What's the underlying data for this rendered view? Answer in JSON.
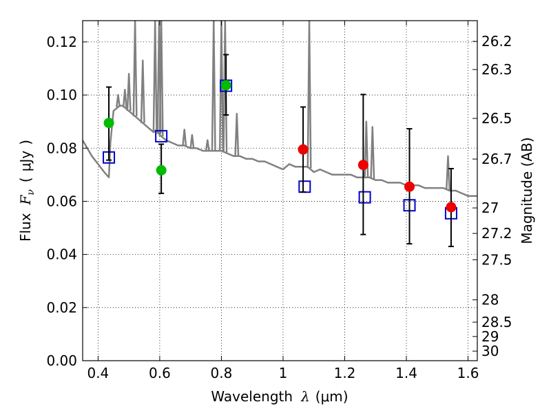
{
  "chart_data": {
    "type": "scatter",
    "title": "",
    "xlabel": {
      "prefix": "Wavelength",
      "symbol": "λ",
      "unit_open": "(",
      "unit": "μm",
      "unit_close": ")"
    },
    "ylabel": {
      "prefix": "Flux",
      "symbol": "F",
      "subscript": "ν",
      "unit_open": "(",
      "unit": "μJy",
      "unit_close": ")"
    },
    "y2label": "Magnitude (AB)",
    "xlim": [
      0.35,
      1.63
    ],
    "ylim": [
      0.0,
      0.128
    ],
    "grid": true,
    "grid_style": "dotted",
    "x_ticks": [
      0.4,
      0.6,
      0.8,
      1.0,
      1.2,
      1.4,
      1.6
    ],
    "x_tick_labels": [
      "0.4",
      "0.6",
      "0.8",
      "1",
      "1.2",
      "1.4",
      "1.6"
    ],
    "y_ticks": [
      0.0,
      0.02,
      0.04,
      0.06,
      0.08,
      0.1,
      0.12
    ],
    "y_tick_labels": [
      "0.00",
      "0.02",
      "0.04",
      "0.06",
      "0.08",
      "0.10",
      "0.12"
    ],
    "y2_ticks": [
      {
        "flux": 0.1202,
        "label": "26.2"
      },
      {
        "flux": 0.1096,
        "label": "26.3"
      },
      {
        "flux": 0.0912,
        "label": "26.5"
      },
      {
        "flux": 0.0759,
        "label": "26.7"
      },
      {
        "flux": 0.0575,
        "label": "27"
      },
      {
        "flux": 0.0479,
        "label": "27.2"
      },
      {
        "flux": 0.038,
        "label": "27.5"
      },
      {
        "flux": 0.0229,
        "label": "28"
      },
      {
        "flux": 0.0145,
        "label": "28.5"
      },
      {
        "flux": 0.0091,
        "label": "29"
      },
      {
        "flux": 0.0036,
        "label": "30"
      }
    ],
    "colors": {
      "sed": "#808080",
      "model": "#0000cc",
      "observed_optical": "#00bb00",
      "observed_nir": "#ee0000",
      "errorbar": "#000000"
    },
    "series": [
      {
        "kind": "line",
        "color": "#808080",
        "x": [
          0.35,
          0.38,
          0.4,
          0.42,
          0.435,
          0.44,
          0.445,
          0.45,
          0.46,
          0.47,
          0.48,
          0.49,
          0.5,
          0.52,
          0.54,
          0.56,
          0.58,
          0.59,
          0.6,
          0.61,
          0.62,
          0.64,
          0.66,
          0.68,
          0.7,
          0.72,
          0.74,
          0.76,
          0.78,
          0.8,
          0.82,
          0.84,
          0.86,
          0.88,
          0.9,
          0.92,
          0.94,
          0.96,
          0.98,
          1.0,
          1.02,
          1.04,
          1.06,
          1.08,
          1.1,
          1.12,
          1.14,
          1.16,
          1.18,
          1.2,
          1.22,
          1.24,
          1.26,
          1.28,
          1.3,
          1.32,
          1.34,
          1.36,
          1.38,
          1.4,
          1.42,
          1.44,
          1.46,
          1.48,
          1.5,
          1.52,
          1.54,
          1.56,
          1.58,
          1.6,
          1.63
        ],
        "y": [
          0.083,
          0.077,
          0.074,
          0.071,
          0.069,
          0.082,
          0.088,
          0.094,
          0.095,
          0.096,
          0.096,
          0.095,
          0.094,
          0.092,
          0.09,
          0.088,
          0.086,
          0.087,
          0.085,
          0.084,
          0.083,
          0.082,
          0.081,
          0.081,
          0.08,
          0.08,
          0.079,
          0.079,
          0.079,
          0.079,
          0.078,
          0.077,
          0.077,
          0.076,
          0.076,
          0.075,
          0.075,
          0.074,
          0.073,
          0.072,
          0.074,
          0.073,
          0.073,
          0.073,
          0.071,
          0.072,
          0.071,
          0.07,
          0.07,
          0.07,
          0.07,
          0.069,
          0.069,
          0.069,
          0.068,
          0.068,
          0.067,
          0.067,
          0.067,
          0.066,
          0.066,
          0.066,
          0.065,
          0.065,
          0.065,
          0.065,
          0.064,
          0.064,
          0.063,
          0.062,
          0.062
        ]
      },
      {
        "kind": "emission_lines",
        "color": "#808080",
        "lines": [
          {
            "x": 0.465,
            "peak": 0.1
          },
          {
            "x": 0.487,
            "peak": 0.102
          },
          {
            "x": 0.5,
            "peak": 0.108
          },
          {
            "x": 0.52,
            "peak": 0.128
          },
          {
            "x": 0.545,
            "peak": 0.113
          },
          {
            "x": 0.585,
            "peak": 0.128
          },
          {
            "x": 0.598,
            "peak": 0.128
          },
          {
            "x": 0.605,
            "peak": 0.128
          },
          {
            "x": 0.68,
            "peak": 0.087
          },
          {
            "x": 0.705,
            "peak": 0.085
          },
          {
            "x": 0.755,
            "peak": 0.083
          },
          {
            "x": 0.775,
            "peak": 0.128
          },
          {
            "x": 0.8,
            "peak": 0.128
          },
          {
            "x": 0.812,
            "peak": 0.128
          },
          {
            "x": 0.85,
            "peak": 0.093
          },
          {
            "x": 1.085,
            "peak": 0.128
          },
          {
            "x": 1.27,
            "peak": 0.09
          },
          {
            "x": 1.29,
            "peak": 0.088
          },
          {
            "x": 1.535,
            "peak": 0.077
          }
        ]
      },
      {
        "kind": "model_points",
        "marker": "open-square",
        "color": "#0000cc",
        "x": [
          0.435,
          0.605,
          0.815,
          1.07,
          1.265,
          1.41,
          1.545
        ],
        "y": [
          0.0765,
          0.0845,
          0.1035,
          0.0655,
          0.0615,
          0.0585,
          0.0555
        ]
      },
      {
        "kind": "observed_points",
        "marker": "filled-circle",
        "x": [
          0.435,
          0.605,
          0.815,
          1.065,
          1.26,
          1.41,
          1.545
        ],
        "y": [
          0.0895,
          0.0717,
          0.1037,
          0.0795,
          0.0737,
          0.0655,
          0.0578
        ],
        "yerr_low": [
          0.014,
          0.0087,
          0.0112,
          0.016,
          0.0262,
          0.0215,
          0.0148
        ],
        "yerr_high": [
          0.0135,
          0.0098,
          0.0115,
          0.016,
          0.0265,
          0.0218,
          0.0145
        ],
        "colors": [
          "#00bb00",
          "#00bb00",
          "#00bb00",
          "#ee0000",
          "#ee0000",
          "#ee0000",
          "#ee0000"
        ]
      }
    ]
  }
}
